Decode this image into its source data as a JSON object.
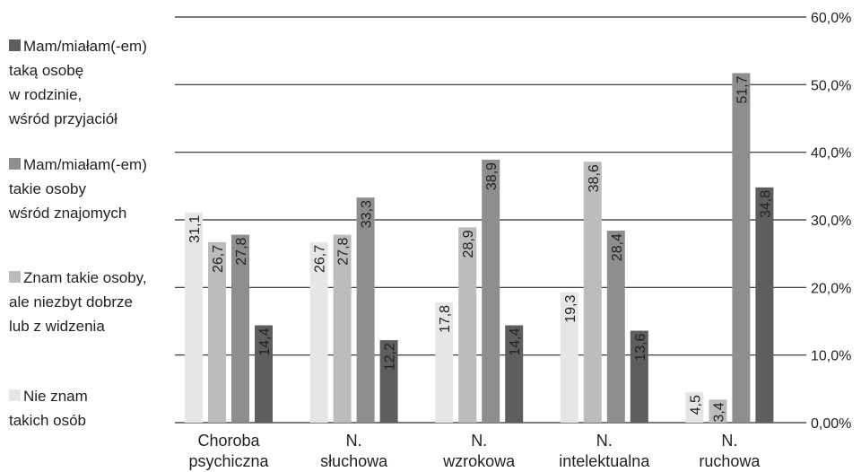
{
  "chart_data": {
    "type": "bar",
    "categories": [
      [
        "Choroba",
        "psychiczna"
      ],
      [
        "N.",
        "słuchowa"
      ],
      [
        "N.",
        "wzrokowa"
      ],
      [
        "N.",
        "intelektualna"
      ],
      [
        "N.",
        "ruchowa"
      ]
    ],
    "series": [
      {
        "name": "Nie znam\ntakich osób",
        "color": "#e6e6e6",
        "values": [
          31.1,
          26.7,
          17.8,
          19.3,
          4.5
        ],
        "labels": [
          "31,1",
          "26,7",
          "17,8",
          "19,3",
          "4,5"
        ]
      },
      {
        "name": "Znam takie osoby,\nale niezbyt dobrze\nlub z widzenia",
        "color": "#bcbcbc",
        "values": [
          26.7,
          27.8,
          28.9,
          38.6,
          3.4
        ],
        "labels": [
          "26,7",
          "27,8",
          "28,9",
          "38,6",
          "3,4"
        ]
      },
      {
        "name": "Mam/miałam(-em)\ntakie osoby\nwśród znajomych",
        "color": "#8e8e8e",
        "values": [
          27.8,
          33.3,
          38.9,
          28.4,
          51.7
        ],
        "labels": [
          "27,8",
          "33,3",
          "38,9",
          "28,4",
          "51,7"
        ]
      },
      {
        "name": "Mam/miałam(-em)\ntaką osobę\nw rodzinie,\nwśród przyjaciół",
        "color": "#5e5e5e",
        "values": [
          14.4,
          12.2,
          14.4,
          13.6,
          34.8
        ],
        "labels": [
          "14,4",
          "12,2",
          "14,4",
          "13,6",
          "34,8"
        ]
      }
    ],
    "yticks": [
      {
        "value": 0,
        "label": "0,00%"
      },
      {
        "value": 10,
        "label": "10,0%"
      },
      {
        "value": 20,
        "label": "20,0%"
      },
      {
        "value": 30,
        "label": "30,0%"
      },
      {
        "value": 40,
        "label": "40,0%"
      },
      {
        "value": 50,
        "label": "50,0%"
      },
      {
        "value": 60,
        "label": "60,0%"
      }
    ],
    "ylim": [
      0,
      60
    ],
    "grid": true,
    "legend_position": "left"
  }
}
